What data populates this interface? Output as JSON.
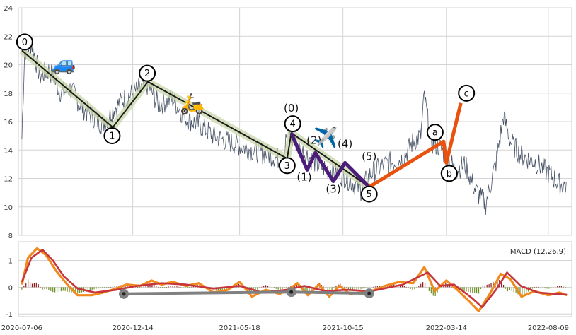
{
  "chart_data": [
    {
      "type": "line",
      "panel": "price",
      "title": "",
      "xlabel": "",
      "ylabel": "",
      "x_ticks": [
        "2020-07-06",
        "2020-12-14",
        "2021-05-18",
        "2021-10-15",
        "2022-03-14",
        "2022-08-09"
      ],
      "x_range": [
        "2020-07-01",
        "2022-09-12"
      ],
      "ylim": [
        8,
        24
      ],
      "y_ticks": [
        8,
        10,
        12,
        14,
        16,
        18,
        20,
        22,
        24
      ],
      "grid": true,
      "series": [
        {
          "color": "#4a5568",
          "points": [
            [
              "2020-07-06",
              14.8
            ],
            [
              "2020-07-10",
              20.9
            ],
            [
              "2020-07-20",
              21.5
            ],
            [
              "2020-08-01",
              19.2
            ],
            [
              "2020-08-15",
              19.6
            ],
            [
              "2020-09-01",
              18.0
            ],
            [
              "2020-09-15",
              18.3
            ],
            [
              "2020-10-01",
              17.0
            ],
            [
              "2020-10-15",
              16.4
            ],
            [
              "2020-11-01",
              15.8
            ],
            [
              "2020-11-15",
              16.8
            ],
            [
              "2020-12-01",
              17.6
            ],
            [
              "2020-12-14",
              18.0
            ],
            [
              "2021-01-05",
              18.6
            ],
            [
              "2021-01-20",
              17.2
            ],
            [
              "2021-02-10",
              17.6
            ],
            [
              "2021-03-01",
              16.2
            ],
            [
              "2021-03-20",
              15.8
            ],
            [
              "2021-04-10",
              15.0
            ],
            [
              "2021-05-01",
              14.6
            ],
            [
              "2021-05-18",
              14.3
            ],
            [
              "2021-06-10",
              13.9
            ],
            [
              "2021-07-05",
              13.6
            ],
            [
              "2021-07-20",
              13.2
            ],
            [
              "2021-07-26",
              15.3
            ],
            [
              "2021-08-10",
              14.2
            ],
            [
              "2021-08-25",
              13.6
            ],
            [
              "2021-09-10",
              12.9
            ],
            [
              "2021-09-25",
              12.6
            ],
            [
              "2021-10-15",
              12.2
            ],
            [
              "2021-11-01",
              11.6
            ],
            [
              "2021-11-10",
              11.2
            ],
            [
              "2021-11-25",
              12.4
            ],
            [
              "2021-12-15",
              13.0
            ],
            [
              "2022-01-10",
              13.4
            ],
            [
              "2022-01-25",
              14.6
            ],
            [
              "2022-02-05",
              15.0
            ],
            [
              "2022-02-10",
              17.8
            ],
            [
              "2022-02-20",
              14.5
            ],
            [
              "2022-03-05",
              14.2
            ],
            [
              "2022-03-14",
              13.5
            ],
            [
              "2022-03-28",
              12.6
            ],
            [
              "2022-04-10",
              13.0
            ],
            [
              "2022-04-25",
              11.2
            ],
            [
              "2022-05-10",
              10.2
            ],
            [
              "2022-05-25",
              13.1
            ],
            [
              "2022-06-05",
              16.4
            ],
            [
              "2022-06-15",
              14.6
            ],
            [
              "2022-07-01",
              13.6
            ],
            [
              "2022-07-20",
              13.2
            ],
            [
              "2022-08-09",
              12.4
            ],
            [
              "2022-08-25",
              11.6
            ],
            [
              "2022-09-05",
              11.5
            ]
          ]
        }
      ],
      "wave_labels": [
        "0",
        "1",
        "2",
        "3",
        "4",
        "5",
        "(0)",
        "(1)",
        "(2)",
        "(3)",
        "(4)",
        "(5)",
        "a",
        "b",
        "c"
      ],
      "wave_points": {
        "primary": [
          [
            "2020-07-06",
            21.0,
            "0"
          ],
          [
            "2020-11-15",
            15.6,
            "1"
          ],
          [
            "2021-01-05",
            18.8,
            "2"
          ],
          [
            "2021-07-26",
            13.4,
            "3"
          ],
          [
            "2021-08-01",
            15.2,
            "4"
          ],
          [
            "2021-11-22",
            11.4,
            "5"
          ]
        ],
        "sub": [
          [
            "2021-08-01",
            15.2
          ],
          [
            "2021-08-24",
            12.6
          ],
          [
            "2021-09-05",
            13.8
          ],
          [
            "2021-10-01",
            11.8
          ],
          [
            "2021-10-18",
            13.1
          ],
          [
            "2021-11-22",
            11.4
          ]
        ],
        "sub_labels": [
          [
            "2021-08-01",
            "(0)"
          ],
          [
            "2021-08-24",
            "(1)"
          ],
          [
            "2021-09-05",
            "(2)"
          ],
          [
            "2021-10-01",
            "(3)"
          ],
          [
            "2021-10-18",
            "(4)"
          ],
          [
            "2021-11-22",
            "(5)"
          ]
        ],
        "correction": [
          [
            "2021-11-22",
            11.4,
            ""
          ],
          [
            "2022-03-10",
            14.6,
            "a"
          ],
          [
            "2022-03-14",
            13.1,
            "b"
          ],
          [
            "2022-04-04",
            17.3,
            "c"
          ]
        ]
      },
      "icons": [
        {
          "name": "car-icon",
          "glyph": "🚙",
          "at": [
            "2020-09-05",
            19.6
          ]
        },
        {
          "name": "scooter-icon",
          "glyph": "🛵",
          "at": [
            "2021-03-10",
            16.8
          ]
        },
        {
          "name": "airplane-icon",
          "glyph": "✈️",
          "at": [
            "2021-09-20",
            14.4
          ]
        }
      ]
    },
    {
      "type": "bar",
      "panel": "macd",
      "title": "MACD (12,26,9)",
      "ylim": [
        -1.1,
        1.7
      ],
      "y_ticks": [
        -1,
        0,
        1
      ],
      "grid": true,
      "colors": {
        "macd": "#f08a1c",
        "signal": "#c7343c",
        "hist_up": "#8b1a1a",
        "hist_down": "#6b8e23",
        "trend": "#808080"
      },
      "macd_points": [
        [
          "2020-07-06",
          0.1
        ],
        [
          "2020-07-15",
          1.1
        ],
        [
          "2020-07-28",
          1.45
        ],
        [
          "2020-08-10",
          1.2
        ],
        [
          "2020-08-25",
          0.6
        ],
        [
          "2020-09-10",
          0.1
        ],
        [
          "2020-09-25",
          -0.3
        ],
        [
          "2020-10-15",
          -0.3
        ],
        [
          "2020-11-01",
          -0.2
        ],
        [
          "2020-11-20",
          -0.05
        ],
        [
          "2020-12-05",
          0.1
        ],
        [
          "2020-12-25",
          0.05
        ],
        [
          "2021-01-10",
          0.25
        ],
        [
          "2021-01-25",
          0.1
        ],
        [
          "2021-02-10",
          0.2
        ],
        [
          "2021-03-01",
          0.05
        ],
        [
          "2021-03-20",
          0.15
        ],
        [
          "2021-04-10",
          -0.2
        ],
        [
          "2021-05-01",
          -0.1
        ],
        [
          "2021-05-18",
          0.2
        ],
        [
          "2021-06-05",
          -0.35
        ],
        [
          "2021-06-25",
          -0.1
        ],
        [
          "2021-07-15",
          -0.25
        ],
        [
          "2021-07-30",
          -0.05
        ],
        [
          "2021-08-10",
          0.15
        ],
        [
          "2021-08-25",
          -0.3
        ],
        [
          "2021-09-10",
          0.1
        ],
        [
          "2021-09-25",
          -0.35
        ],
        [
          "2021-10-10",
          0.05
        ],
        [
          "2021-10-25",
          -0.25
        ],
        [
          "2021-11-10",
          -0.2
        ],
        [
          "2021-11-25",
          -0.15
        ],
        [
          "2021-12-15",
          0.05
        ],
        [
          "2022-01-05",
          0.2
        ],
        [
          "2022-01-25",
          0.15
        ],
        [
          "2022-02-10",
          0.75
        ],
        [
          "2022-02-25",
          -0.15
        ],
        [
          "2022-03-14",
          0.25
        ],
        [
          "2022-03-30",
          -0.1
        ],
        [
          "2022-04-15",
          -0.5
        ],
        [
          "2022-04-30",
          -0.9
        ],
        [
          "2022-05-15",
          -0.3
        ],
        [
          "2022-06-01",
          0.5
        ],
        [
          "2022-06-15",
          0.3
        ],
        [
          "2022-07-01",
          -0.35
        ],
        [
          "2022-07-20",
          -0.15
        ],
        [
          "2022-08-09",
          -0.3
        ],
        [
          "2022-08-25",
          -0.2
        ],
        [
          "2022-09-05",
          -0.3
        ]
      ],
      "signal_points": [
        [
          "2020-07-06",
          0.2
        ],
        [
          "2020-07-20",
          1.1
        ],
        [
          "2020-08-05",
          1.4
        ],
        [
          "2020-08-20",
          1.0
        ],
        [
          "2020-09-05",
          0.4
        ],
        [
          "2020-09-25",
          -0.05
        ],
        [
          "2020-10-20",
          -0.2
        ],
        [
          "2020-11-20",
          -0.1
        ],
        [
          "2020-12-20",
          0.05
        ],
        [
          "2021-01-25",
          0.15
        ],
        [
          "2021-03-01",
          0.1
        ],
        [
          "2021-04-10",
          -0.05
        ],
        [
          "2021-05-18",
          0.05
        ],
        [
          "2021-06-20",
          -0.2
        ],
        [
          "2021-07-25",
          -0.1
        ],
        [
          "2021-08-20",
          0.05
        ],
        [
          "2021-09-20",
          -0.15
        ],
        [
          "2021-10-20",
          -0.1
        ],
        [
          "2021-11-25",
          -0.15
        ],
        [
          "2022-01-10",
          0.1
        ],
        [
          "2022-02-15",
          0.55
        ],
        [
          "2022-03-05",
          0.05
        ],
        [
          "2022-03-25",
          0.1
        ],
        [
          "2022-04-20",
          -0.4
        ],
        [
          "2022-05-05",
          -0.75
        ],
        [
          "2022-05-25",
          -0.1
        ],
        [
          "2022-06-10",
          0.55
        ],
        [
          "2022-06-30",
          0.05
        ],
        [
          "2022-07-25",
          -0.2
        ],
        [
          "2022-08-20",
          -0.25
        ],
        [
          "2022-09-05",
          -0.28
        ]
      ],
      "trend_points": [
        [
          "2020-12-01",
          -0.25
        ],
        [
          "2021-08-01",
          -0.18
        ],
        [
          "2021-11-22",
          -0.23
        ]
      ]
    }
  ]
}
